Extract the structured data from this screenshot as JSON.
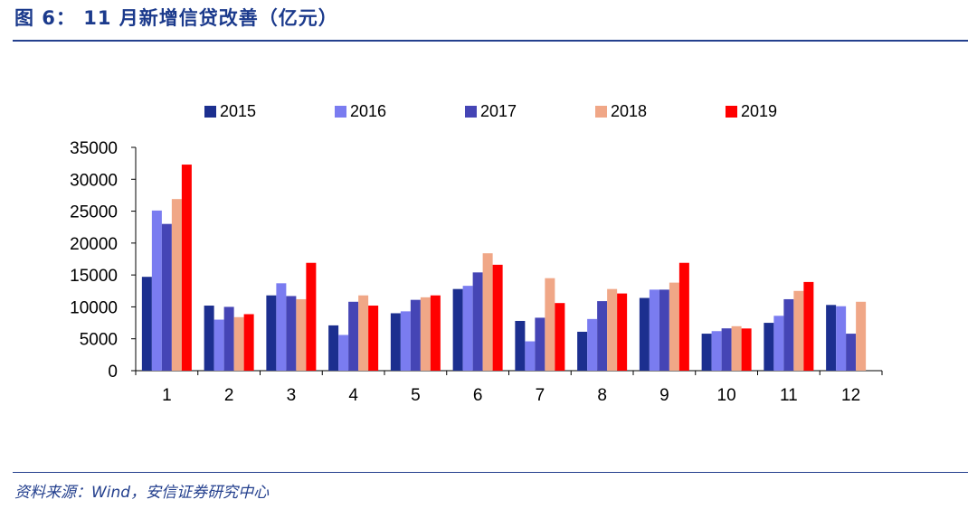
{
  "header": {
    "title": "图 6： 11 月新增信贷改善（亿元）"
  },
  "footer": {
    "source": "资料来源：Wind，安信证券研究中心"
  },
  "chart_data": {
    "type": "bar",
    "title": "",
    "xlabel": "",
    "ylabel": "",
    "categories": [
      "1",
      "2",
      "3",
      "4",
      "5",
      "6",
      "7",
      "8",
      "9",
      "10",
      "11",
      "12"
    ],
    "ylim": [
      0,
      35000
    ],
    "yticks": [
      0,
      5000,
      10000,
      15000,
      20000,
      25000,
      30000,
      35000
    ],
    "legend_position": "top",
    "grid": false,
    "series": [
      {
        "name": "2015",
        "color": "#1c2f8f",
        "values": [
          14708,
          10200,
          11800,
          7100,
          9000,
          12800,
          7800,
          6100,
          11400,
          5800,
          7500,
          10300
        ]
      },
      {
        "name": "2016",
        "color": "#7a7cf0",
        "values": [
          25100,
          8000,
          13700,
          5600,
          9300,
          13300,
          4600,
          8100,
          12700,
          6200,
          8600,
          10100
        ]
      },
      {
        "name": "2017",
        "color": "#4545b5",
        "values": [
          23000,
          10000,
          11700,
          10800,
          11100,
          15400,
          8300,
          10900,
          12700,
          6632,
          11200,
          5800
        ]
      },
      {
        "name": "2018",
        "color": "#f0a787",
        "values": [
          26900,
          8390,
          11200,
          11800,
          11500,
          18400,
          14500,
          12800,
          13800,
          6970,
          12500,
          10800
        ]
      },
      {
        "name": "2019",
        "color": "#ff0000",
        "values": [
          32300,
          8858,
          16900,
          10200,
          11800,
          16600,
          10600,
          12100,
          16900,
          6613,
          13900,
          null
        ]
      }
    ]
  }
}
